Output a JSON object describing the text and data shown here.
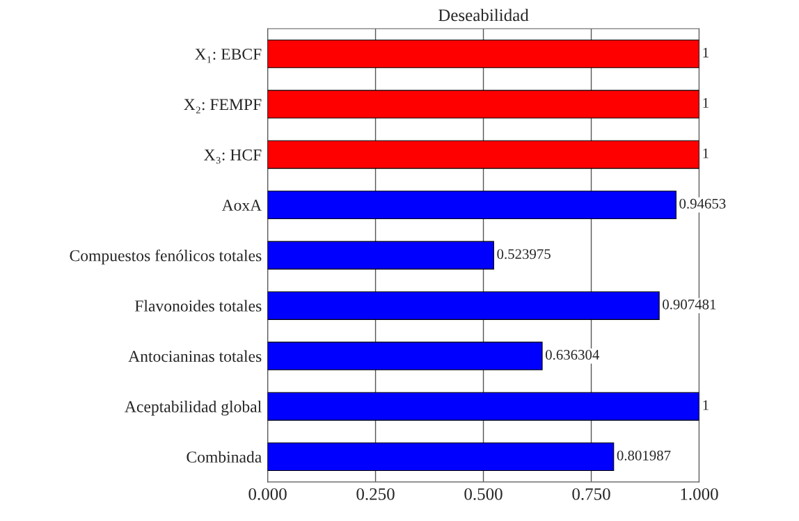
{
  "chart_data": {
    "type": "bar",
    "orientation": "horizontal",
    "title": "Deseabilidad",
    "categories": [
      "X₁: EBCF",
      "X₂: FEMPF",
      "X₃: HCF",
      "AoxA",
      "Compuestos fenólicos totales",
      "Flavonoides totales",
      "Antocianinas totales",
      "Aceptabilidad global",
      "Combinada"
    ],
    "values": [
      1,
      1,
      1,
      0.94653,
      0.523975,
      0.907481,
      0.636304,
      1,
      0.801987
    ],
    "colors": [
      "#ff0000",
      "#ff0000",
      "#ff0000",
      "#0000ff",
      "#0000ff",
      "#0000ff",
      "#0000ff",
      "#0000ff",
      "#0000ff"
    ],
    "value_labels": [
      "1",
      "1",
      "1",
      "0.94653",
      "0.523975",
      "0.907481",
      "0.636304",
      "1",
      "0.801987"
    ],
    "xlim": [
      0,
      1
    ],
    "xticks": [
      {
        "value": 0,
        "label": "0.000"
      },
      {
        "value": 0.25,
        "label": "0.250"
      },
      {
        "value": 0.5,
        "label": "0.500"
      },
      {
        "value": 0.75,
        "label": "0.750"
      },
      {
        "value": 1,
        "label": "1.000"
      }
    ],
    "grid": "x"
  }
}
